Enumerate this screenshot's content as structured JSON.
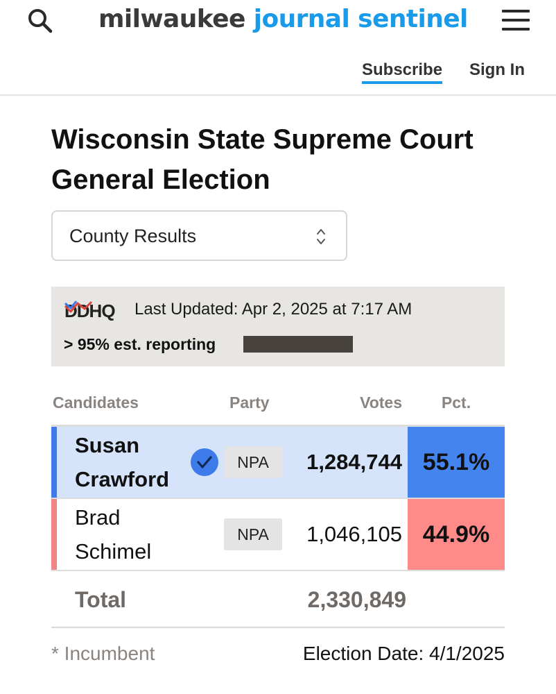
{
  "header": {
    "logo_part1": "milwaukee",
    "logo_part2": "journal sentinel",
    "subscribe_label": "Subscribe",
    "signin_label": "Sign In",
    "accent_color": "#1a9bea",
    "icons": [
      "search-icon",
      "hamburger-menu-icon"
    ]
  },
  "main": {
    "title": "Wisconsin State Supreme Court General Election",
    "results_select": {
      "value": "County Results"
    }
  },
  "status": {
    "provider_logo": "ddhq-logo",
    "last_updated": "Last Updated: Apr 2, 2025 at 7:17 AM",
    "reporting_text": "> 95% est. reporting",
    "reporting_fraction": 0.95
  },
  "table": {
    "headers": {
      "candidates": "Candidates",
      "party": "Party",
      "votes": "Votes",
      "pct": "Pct."
    },
    "rows": [
      {
        "first": "Susan",
        "last": "Crawford",
        "winner": true,
        "party": "NPA",
        "votes": "1,284,744",
        "pct": "55.1%",
        "color": "#4384ef"
      },
      {
        "first": "Brad",
        "last": "Schimel",
        "winner": false,
        "party": "NPA",
        "votes": "1,046,105",
        "pct": "44.9%",
        "color": "#ff8a8a"
      }
    ],
    "total_label": "Total",
    "total_votes": "2,330,849"
  },
  "footer": {
    "incumbent_note": "* Incumbent",
    "election_date": "Election Date: 4/1/2025"
  }
}
